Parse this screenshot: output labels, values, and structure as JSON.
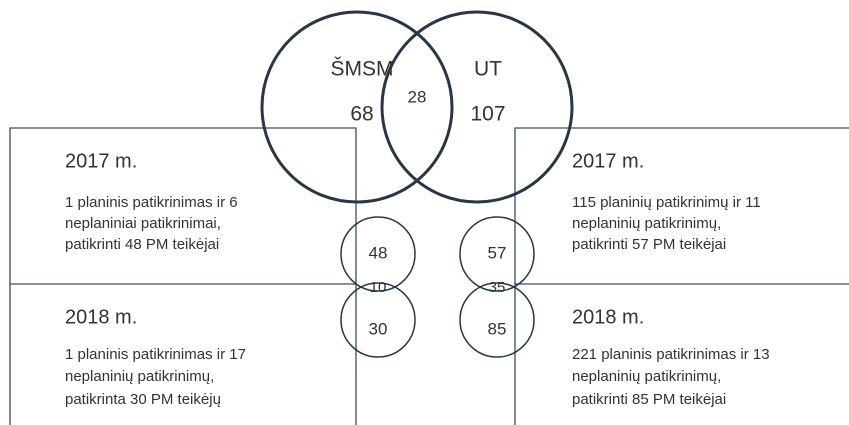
{
  "venn": {
    "left": {
      "label": "ŠMSM",
      "value": "68"
    },
    "right": {
      "label": "UT",
      "value": "107"
    },
    "overlap": "28"
  },
  "sides": [
    {
      "overlap": "10",
      "years": [
        {
          "year": "2017 m.",
          "value": "48",
          "lines": [
            "1 planinis patikrinimas ir 6",
            "neplaniniai patikrinimai,",
            "patikrinti 48 PM teikėjai"
          ]
        },
        {
          "year": "2018 m.",
          "value": "30",
          "lines": [
            "1 planinis patikrinimas ir 17",
            "neplaninių patikrinimų,",
            "patikrinta 30 PM teikėjų"
          ]
        }
      ]
    },
    {
      "overlap": "35",
      "years": [
        {
          "year": "2017 m.",
          "value": "57",
          "lines": [
            "115 planinių patikrinimų ir 11",
            "neplaninių patikrinimų,",
            "patikrinti 57 PM teikėjai"
          ]
        },
        {
          "year": "2018 m.",
          "value": "85",
          "lines": [
            "221 planinis patikrinimas ir 13",
            "neplaninių patikrinimų,",
            "patikrinti 85 PM teikėjai"
          ]
        }
      ]
    }
  ]
}
